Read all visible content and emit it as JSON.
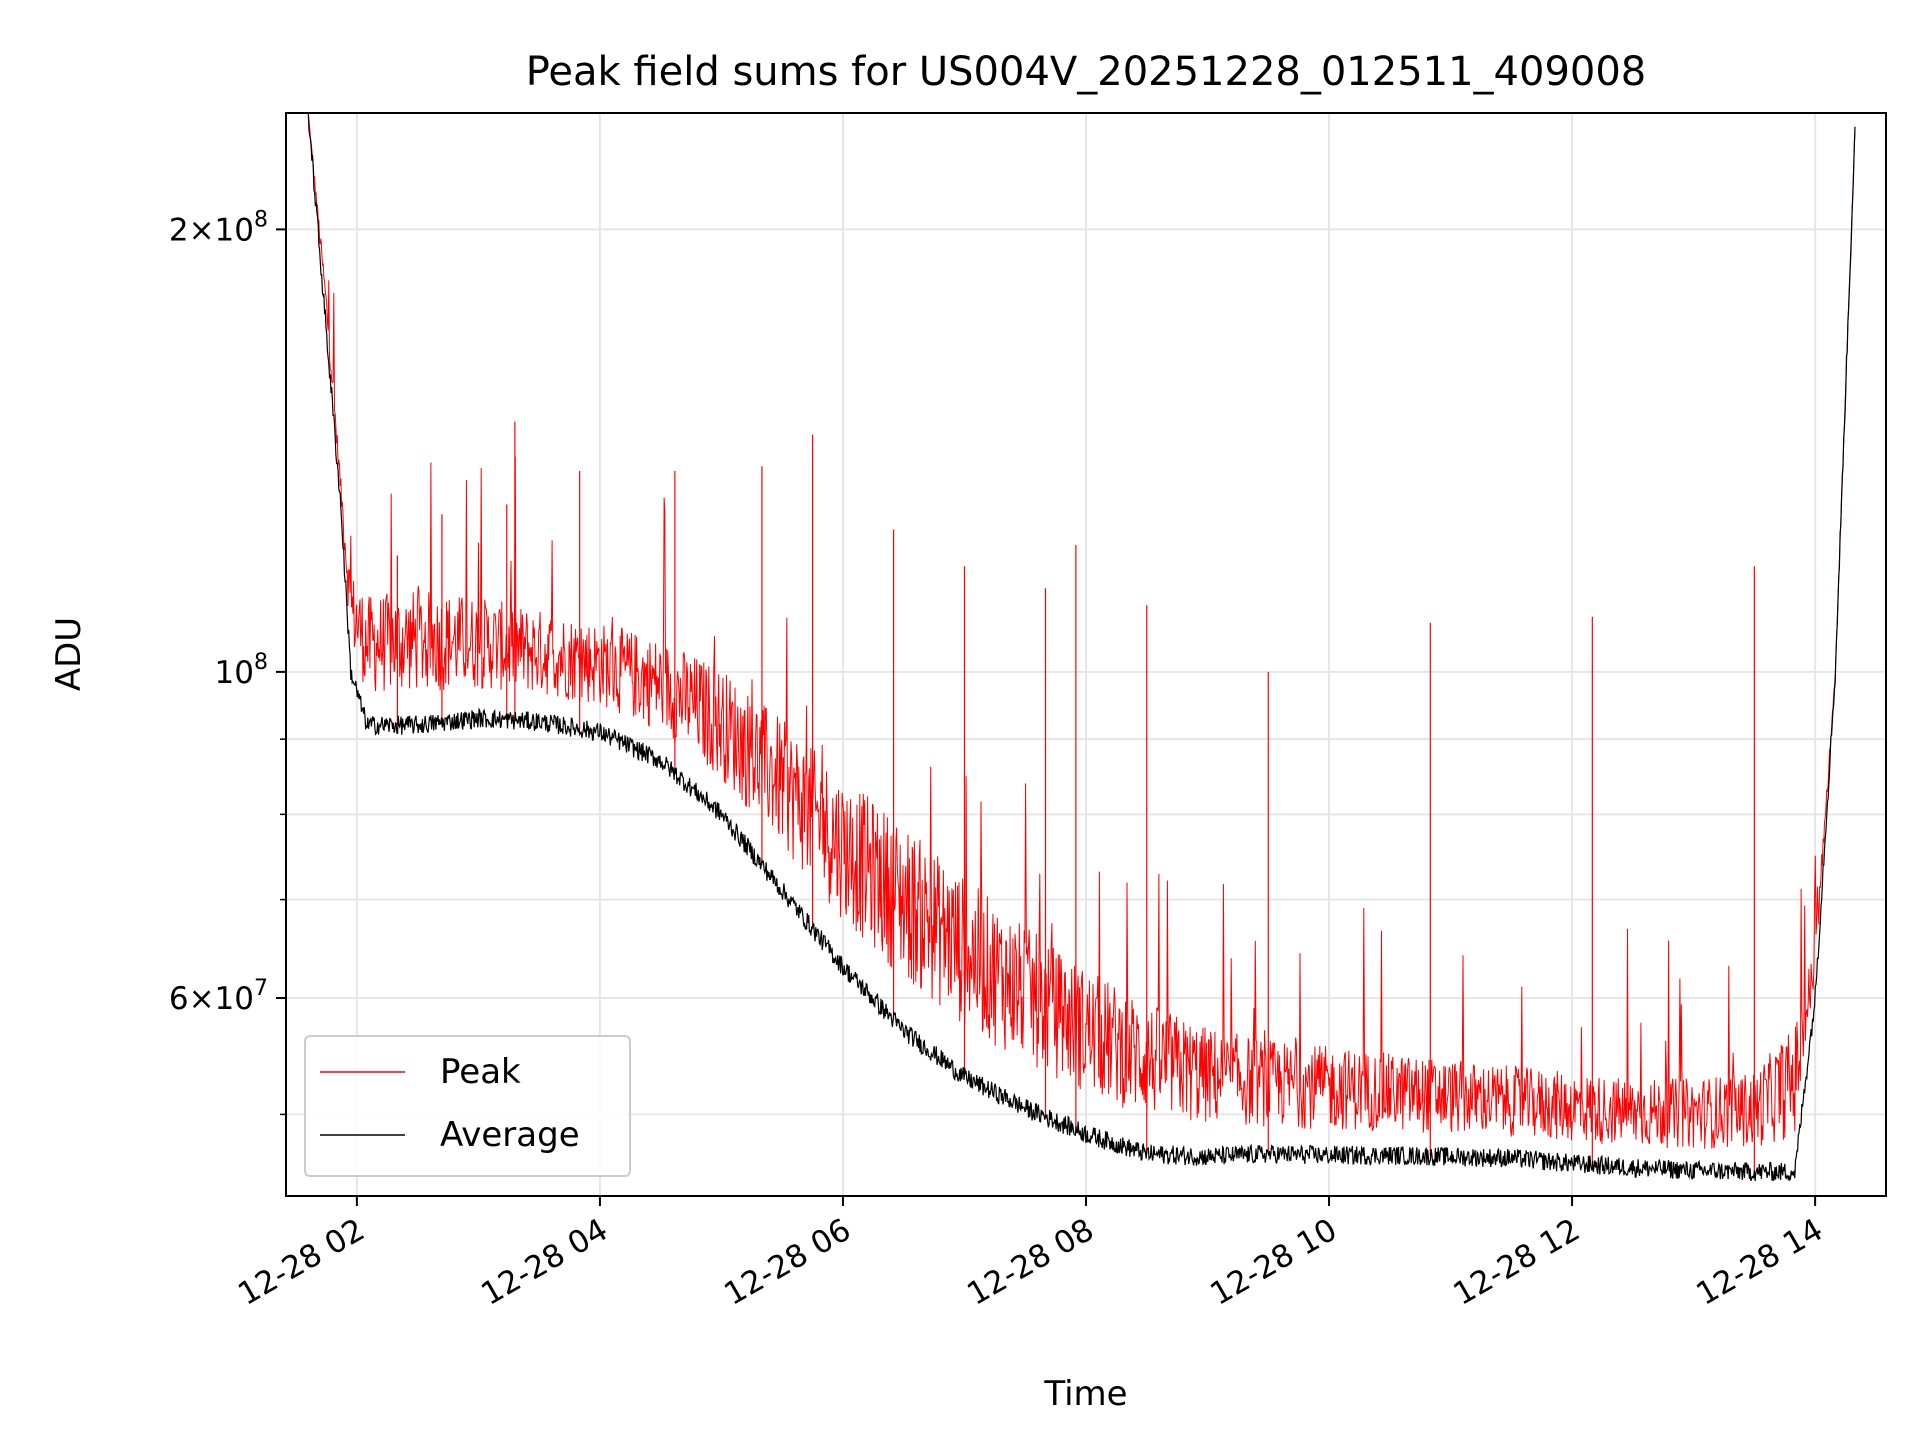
{
  "chart_data": {
    "type": "line",
    "title": "Peak field sums for US004V_20251228_012511_409008",
    "xlabel": "Time",
    "ylabel": "ADU",
    "y_scale": "log",
    "ylim": [
      44000000,
      240000000
    ],
    "xlim": [
      "12-28 01:25",
      "12-28 14:35"
    ],
    "x_ticks": [
      "12-28 02",
      "12-28 04",
      "12-28 06",
      "12-28 08",
      "12-28 10",
      "12-28 12",
      "12-28 14"
    ],
    "y_tick_labels": [
      {
        "value": 200000000,
        "mantissa": "2",
        "exp": "8"
      },
      {
        "value": 100000000,
        "mantissa": "",
        "exp": "8"
      },
      {
        "value": 60000000,
        "mantissa": "6",
        "exp": "7"
      }
    ],
    "y_minor_ticks": [
      50000000,
      70000000,
      80000000,
      90000000
    ],
    "grid": true,
    "legend_position": "lower-left",
    "series": [
      {
        "name": "Peak",
        "color": "#ff0000",
        "x": [
          "12-28 01:36",
          "12-28 01:45",
          "12-28 01:52",
          "12-28 01:57",
          "12-28 02:05",
          "12-28 02:30",
          "12-28 03:00",
          "12-28 03:30",
          "12-28 04:00",
          "12-28 04:30",
          "12-28 05:00",
          "12-28 05:30",
          "12-28 06:00",
          "12-28 06:30",
          "12-28 07:00",
          "12-28 07:30",
          "12-28 08:00",
          "12-28 08:30",
          "12-28 09:00",
          "12-28 09:30",
          "12-28 10:00",
          "12-28 10:30",
          "12-28 11:00",
          "12-28 11:30",
          "12-28 12:00",
          "12-28 12:30",
          "12-28 13:00",
          "12-28 13:30",
          "12-28 13:50",
          "12-28 14:00",
          "12-28 14:10",
          "12-28 14:20"
        ],
        "y": [
          240000000,
          180000000,
          135000000,
          115000000,
          110000000,
          111000000,
          110000000,
          108000000,
          106000000,
          103000000,
          98000000,
          90000000,
          82000000,
          76000000,
          70000000,
          65000000,
          61000000,
          58000000,
          56000000,
          55000000,
          54500000,
          54000000,
          53500000,
          53000000,
          52500000,
          52000000,
          52000000,
          52500000,
          56000000,
          65000000,
          100000000,
          240000000
        ],
        "spikes": [
          {
            "x": "12-28 02:20",
            "y": 120000000
          },
          {
            "x": "12-28 02:42",
            "y": 128000000
          },
          {
            "x": "12-28 03:14",
            "y": 130000000
          },
          {
            "x": "12-28 03:18",
            "y": 148000000
          },
          {
            "x": "12-28 03:50",
            "y": 137000000
          },
          {
            "x": "12-28 04:37",
            "y": 137000000
          },
          {
            "x": "12-28 05:20",
            "y": 138000000
          },
          {
            "x": "12-28 05:45",
            "y": 145000000
          },
          {
            "x": "12-28 06:25",
            "y": 125000000
          },
          {
            "x": "12-28 07:00",
            "y": 118000000
          },
          {
            "x": "12-28 07:40",
            "y": 114000000
          },
          {
            "x": "12-28 07:55",
            "y": 122000000
          },
          {
            "x": "12-28 08:30",
            "y": 111000000
          },
          {
            "x": "12-28 09:30",
            "y": 100000000
          },
          {
            "x": "12-28 10:50",
            "y": 108000000
          },
          {
            "x": "12-28 12:10",
            "y": 109000000
          },
          {
            "x": "12-28 13:30",
            "y": 118000000
          }
        ]
      },
      {
        "name": "Average",
        "color": "#000000",
        "x": [
          "12-28 01:36",
          "12-28 01:45",
          "12-28 01:52",
          "12-28 01:57",
          "12-28 02:05",
          "12-28 02:30",
          "12-28 03:00",
          "12-28 03:30",
          "12-28 04:00",
          "12-28 04:30",
          "12-28 05:00",
          "12-28 05:30",
          "12-28 06:00",
          "12-28 06:30",
          "12-28 07:00",
          "12-28 07:30",
          "12-28 08:00",
          "12-28 08:30",
          "12-28 09:00",
          "12-28 09:30",
          "12-28 10:00",
          "12-28 10:30",
          "12-28 11:00",
          "12-28 11:30",
          "12-28 12:00",
          "12-28 12:30",
          "12-28 13:00",
          "12-28 13:30",
          "12-28 13:50",
          "12-28 14:00",
          "12-28 14:10",
          "12-28 14:20"
        ],
        "y": [
          240000000,
          170000000,
          130000000,
          100000000,
          92000000,
          92000000,
          93000000,
          92500000,
          91000000,
          87000000,
          80000000,
          71000000,
          63000000,
          57000000,
          53000000,
          50500000,
          48500000,
          47000000,
          46800000,
          47000000,
          46900000,
          46900000,
          46800000,
          46700000,
          46300000,
          46000000,
          45800000,
          45700000,
          45700000,
          60000000,
          100000000,
          240000000
        ]
      }
    ]
  }
}
